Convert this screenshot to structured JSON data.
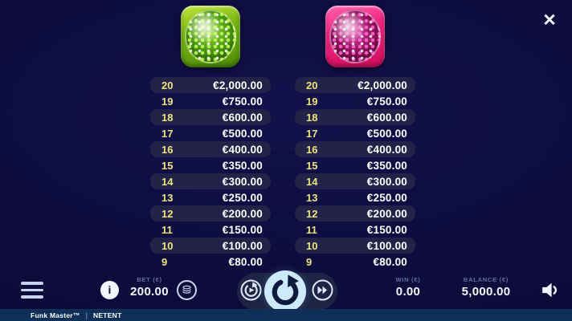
{
  "header": {
    "close_icon": "✕"
  },
  "paytables": [
    {
      "symbol": "green-disco-ball",
      "rows": [
        {
          "count": "20",
          "value": "€2,000.00"
        },
        {
          "count": "19",
          "value": "€750.00"
        },
        {
          "count": "18",
          "value": "€600.00"
        },
        {
          "count": "17",
          "value": "€500.00"
        },
        {
          "count": "16",
          "value": "€400.00"
        },
        {
          "count": "15",
          "value": "€350.00"
        },
        {
          "count": "14",
          "value": "€300.00"
        },
        {
          "count": "13",
          "value": "€250.00"
        },
        {
          "count": "12",
          "value": "€200.00"
        },
        {
          "count": "11",
          "value": "€150.00"
        },
        {
          "count": "10",
          "value": "€100.00"
        },
        {
          "count": "9",
          "value": "€80.00"
        }
      ]
    },
    {
      "symbol": "pink-disco-ball",
      "rows": [
        {
          "count": "20",
          "value": "€2,000.00"
        },
        {
          "count": "19",
          "value": "€750.00"
        },
        {
          "count": "18",
          "value": "€600.00"
        },
        {
          "count": "17",
          "value": "€500.00"
        },
        {
          "count": "16",
          "value": "€400.00"
        },
        {
          "count": "15",
          "value": "€350.00"
        },
        {
          "count": "14",
          "value": "€300.00"
        },
        {
          "count": "13",
          "value": "€250.00"
        },
        {
          "count": "12",
          "value": "€200.00"
        },
        {
          "count": "11",
          "value": "€150.00"
        },
        {
          "count": "10",
          "value": "€100.00"
        },
        {
          "count": "9",
          "value": "€80.00"
        }
      ]
    }
  ],
  "controls": {
    "info_icon": "i",
    "bet_label": "BET (€)",
    "bet_value": "200.00",
    "win_label": "WIN (€)",
    "win_value": "0.00",
    "balance_label": "BALANCE (€)",
    "balance_value": "5,000.00"
  },
  "footer": {
    "game": "Funk Master™",
    "separator": "|",
    "provider": "NETENT"
  },
  "colors": {
    "background": "#0d0c3c",
    "row_pill": "#232248",
    "accent_yellow": "#ece57d",
    "spin_button": "#cdeafd",
    "footer_bg": "#0d2f58"
  }
}
